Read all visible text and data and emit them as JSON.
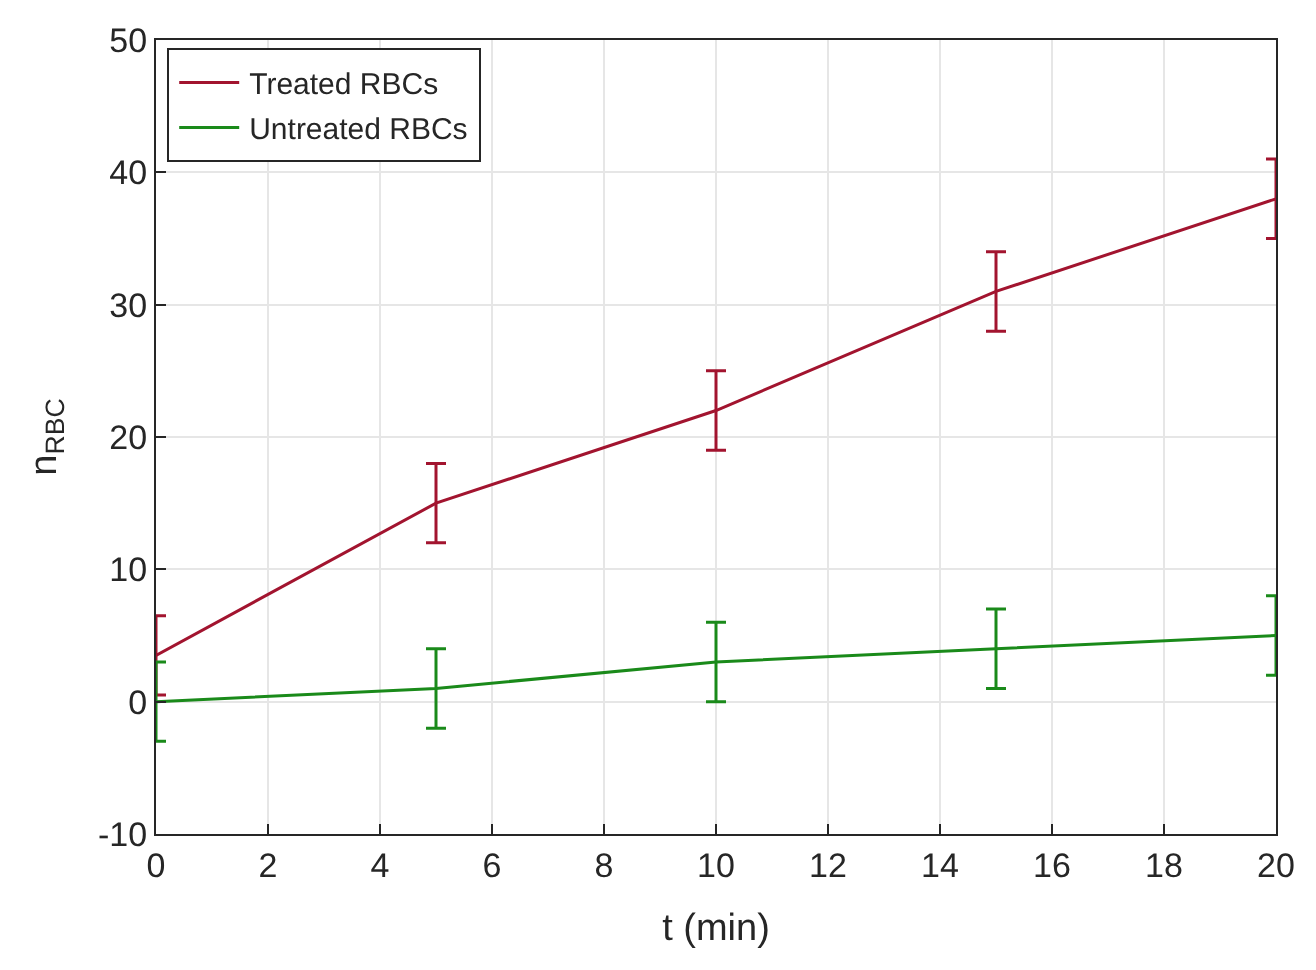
{
  "chart_data": {
    "type": "line",
    "xlabel": "t (min)",
    "ylabel": "n$_{RBC}$",
    "x": [
      0,
      5,
      10,
      15,
      20
    ],
    "series": [
      {
        "name": "Treated RBCs",
        "color": "#a2142f",
        "values": [
          3.5,
          15,
          22,
          31,
          38
        ],
        "errors": [
          3,
          3,
          3,
          3,
          3
        ]
      },
      {
        "name": "Untreated RBCs",
        "color": "#1a8a1a",
        "values": [
          0,
          1,
          3,
          4,
          5
        ],
        "errors": [
          3,
          3,
          3,
          3,
          3
        ]
      }
    ],
    "xlim": [
      0,
      20
    ],
    "xticks": [
      0,
      2,
      4,
      6,
      8,
      10,
      12,
      14,
      16,
      18,
      20
    ],
    "ylim": [
      -10,
      50
    ],
    "yticks": [
      -10,
      0,
      10,
      20,
      30,
      40,
      50
    ],
    "grid": true,
    "legend": "top left",
    "marker": "none",
    "line_style": "solid"
  }
}
